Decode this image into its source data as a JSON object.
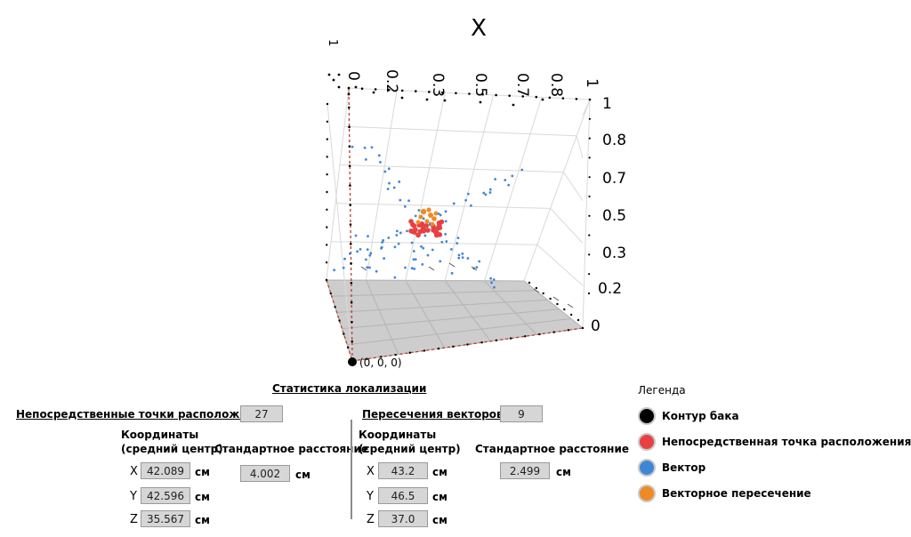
{
  "plot": {
    "x_axis_title": "X",
    "x_ticks": [
      "0",
      "0.2",
      "0.3",
      "0.5",
      "0.7",
      "0.8",
      "1"
    ],
    "y_ticks_left_top": [
      "1"
    ],
    "z_ticks": [
      "1",
      "0.8",
      "0.7",
      "0.5",
      "0.3",
      "0.2",
      "0"
    ],
    "origin_label": "(0, 0, 0)",
    "colors": {
      "tank": "#000000",
      "direct": "#e84040",
      "vector": "#3f86d6",
      "intersection": "#f08a24",
      "floor": "#c4c4c4",
      "grid": "#d9d9d9",
      "edge": "#c0392b"
    }
  },
  "stats": {
    "title": "Статистика локализации",
    "direct": {
      "header": "Непосредственные точки расположения",
      "count": "27",
      "coords_label_1": "Координаты",
      "coords_label_2": "(средний центр)",
      "std_label": "Стандартное расстояние",
      "x_label": "X",
      "x_value": "42.089",
      "y_label": "Y",
      "y_value": "42.596",
      "z_label": "Z",
      "z_value": "35.567",
      "std_value": "4.002",
      "unit": "см"
    },
    "vector": {
      "header": "Пересечения векторов",
      "count": "9",
      "coords_label_1": "Координаты",
      "coords_label_2": "(средний центр)",
      "std_label": "Стандартное расстояние",
      "x_label": "X",
      "x_value": "43.2",
      "y_label": "Y",
      "y_value": "46.5",
      "z_label": "Z",
      "z_value": "37.0",
      "std_value": "2.499",
      "unit": "см"
    }
  },
  "legend": {
    "title": "Легенда",
    "items": [
      {
        "label": "Контур бака",
        "color": "#000000",
        "icon": "black-circle-icon"
      },
      {
        "label": "Непосредственная точка расположения",
        "color": "#e84040",
        "icon": "red-circle-icon"
      },
      {
        "label": "Вектор",
        "color": "#3f86d6",
        "icon": "blue-circle-icon"
      },
      {
        "label": "Векторное пересечение",
        "color": "#f08a24",
        "icon": "orange-circle-icon"
      }
    ]
  }
}
